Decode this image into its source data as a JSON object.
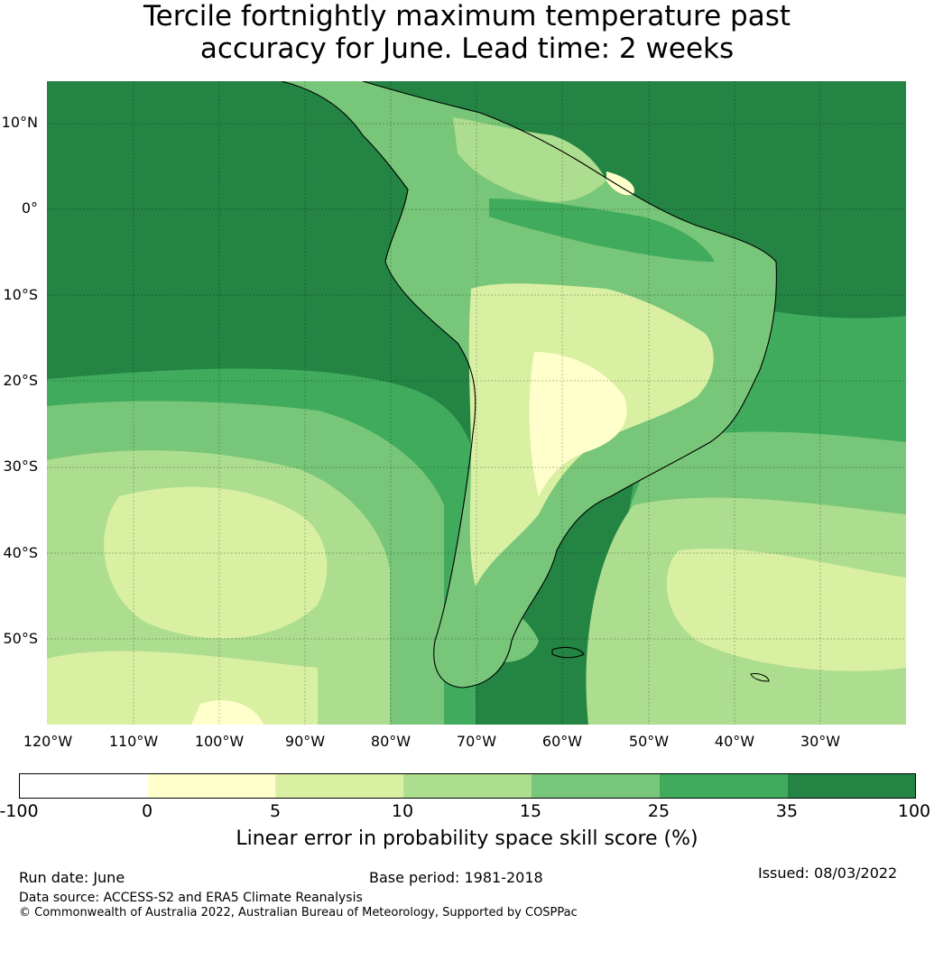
{
  "title_line1": "Tercile fortnightly maximum temperature past",
  "title_line2": "accuracy for June. Lead time: 2 weeks",
  "map": {
    "lat_labels": [
      "10°N",
      "0°",
      "10°S",
      "20°S",
      "30°S",
      "40°S",
      "50°S"
    ],
    "lon_labels": [
      "120°W",
      "110°W",
      "100°W",
      "90°W",
      "80°W",
      "70°W",
      "60°W",
      "50°W",
      "40°W",
      "30°W"
    ],
    "gridlines": true
  },
  "colorbar": {
    "ticks": [
      "-100",
      "0",
      "5",
      "10",
      "15",
      "25",
      "35",
      "100"
    ],
    "colors": [
      "#ffffff",
      "#ffffcc",
      "#d9f0a3",
      "#addd8e",
      "#78c679",
      "#41ab5d",
      "#238443"
    ],
    "label": "Linear error in probability space skill score (%)"
  },
  "footer": {
    "run_date": "Run date: June",
    "base_period": "Base period: 1981-2018",
    "issued": "Issued: 08/03/2022",
    "source": "Data source: ACCESS-S2 and ERA5 Climate Reanalysis",
    "copyright": "© Commonwealth of Australia 2022, Australian Bureau of Meteorology, Supported by COSPPac"
  }
}
